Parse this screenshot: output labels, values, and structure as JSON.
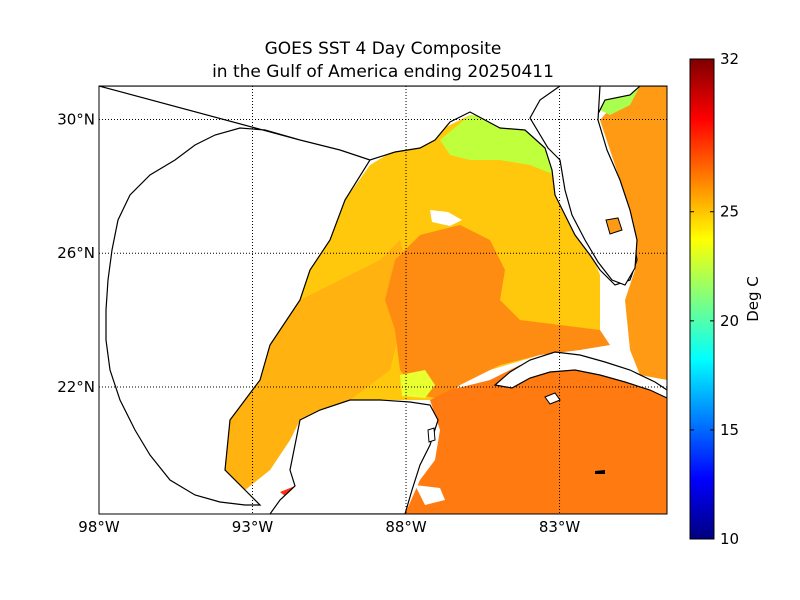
{
  "title": {
    "line1": "GOES SST 4 Day Composite",
    "line2": "in the Gulf of America ending 20250411"
  },
  "map": {
    "lon_range": [
      -98,
      -79.5
    ],
    "lat_range": [
      18.2,
      31
    ],
    "lon_ticks": [
      {
        "value": -98,
        "label": "98°W"
      },
      {
        "value": -93,
        "label": "93°W"
      },
      {
        "value": -88,
        "label": "88°W"
      },
      {
        "value": -83,
        "label": "83°W"
      }
    ],
    "lat_ticks": [
      {
        "value": 30,
        "label": "30°N"
      },
      {
        "value": 26,
        "label": "26°N"
      },
      {
        "value": 22,
        "label": "22°N"
      }
    ],
    "grid": "dotted",
    "land_color": "#ffffff",
    "coastline_color": "#000000"
  },
  "colorbar": {
    "label": "Deg C",
    "min": 10,
    "max": 32,
    "colormap": "jet",
    "ticks": [
      {
        "value": 32,
        "label": "32"
      },
      {
        "value": 25,
        "label": "25"
      },
      {
        "value": 20,
        "label": "20"
      },
      {
        "value": 15,
        "label": "15"
      },
      {
        "value": 10,
        "label": "10"
      }
    ],
    "stops": [
      "#00007f",
      "#0000ff",
      "#007fff",
      "#00ffff",
      "#7fff7f",
      "#ffff00",
      "#ff7f00",
      "#ff0000",
      "#7f0000"
    ]
  },
  "sst": {
    "western_patches_deg_c": 24.5,
    "central_gulf_deg_c": 25.5,
    "loop_current_deg_c": 27,
    "caribbean_deg_c": 27.5,
    "northeast_shelf_deg_c": 22.5
  }
}
